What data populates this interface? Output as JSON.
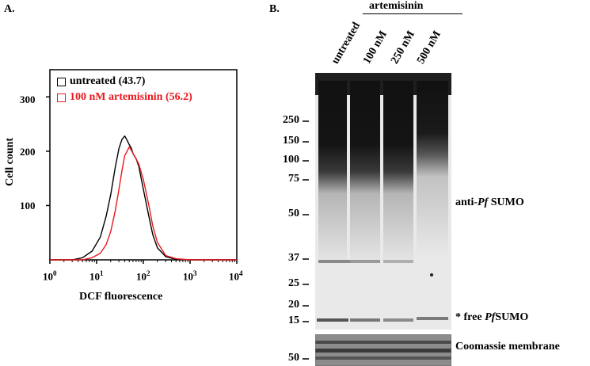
{
  "panel_a": {
    "label": "A.",
    "chart_data": {
      "type": "line",
      "title": "",
      "xlabel": "DCF fluorescence",
      "ylabel": "Cell count",
      "x_scale": "log",
      "xlim": [
        1,
        10000
      ],
      "ylim": [
        0,
        350
      ],
      "x_ticks": [
        1,
        10,
        100,
        1000,
        10000
      ],
      "y_ticks": [
        100,
        200,
        300
      ],
      "series": [
        {
          "name": "untreated (43.7)",
          "color": "#000000",
          "x": [
            1,
            3,
            5,
            8,
            12,
            16,
            20,
            25,
            30,
            35,
            40,
            45,
            50,
            55,
            60,
            70,
            80,
            100,
            130,
            160,
            200,
            300,
            500,
            1000,
            10000
          ],
          "y": [
            0,
            0,
            4,
            16,
            42,
            80,
            120,
            170,
            205,
            222,
            228,
            220,
            212,
            206,
            196,
            186,
            172,
            130,
            82,
            46,
            22,
            6,
            1,
            0,
            0
          ]
        },
        {
          "name": "100 nM artemisinin (56.2)",
          "color": "#e8191e",
          "x": [
            1,
            5,
            8,
            12,
            16,
            20,
            25,
            30,
            35,
            40,
            45,
            50,
            55,
            60,
            65,
            70,
            80,
            100,
            130,
            160,
            200,
            300,
            500,
            1000,
            10000
          ],
          "y": [
            0,
            0,
            4,
            12,
            28,
            52,
            90,
            130,
            165,
            192,
            200,
            208,
            202,
            196,
            190,
            186,
            176,
            148,
            102,
            62,
            32,
            8,
            2,
            0,
            0
          ]
        }
      ]
    },
    "x_tick_labels": [
      {
        "base": "10",
        "exp": "0"
      },
      {
        "base": "10",
        "exp": "1"
      },
      {
        "base": "10",
        "exp": "2"
      },
      {
        "base": "10",
        "exp": "3"
      },
      {
        "base": "10",
        "exp": "4"
      }
    ],
    "y_tick_labels": [
      "100",
      "200",
      "300"
    ],
    "legend": [
      {
        "text": "untreated (43.7)",
        "color": "#000000"
      },
      {
        "text": "100 nM artemisinin (56.2)",
        "color": "#e8191e"
      }
    ]
  },
  "panel_b": {
    "label": "B.",
    "treatment_header": "artemisinin",
    "lanes": [
      "untreated",
      "100 nM",
      "250 nM",
      "500 nM"
    ],
    "mw_markers": [
      "250",
      "150",
      "100",
      "75",
      "50",
      "37",
      "25",
      "20",
      "15"
    ],
    "coomassie_marker": "50",
    "annotations": {
      "sumo": {
        "prefix": "anti-",
        "italic": "Pf",
        "suffix": " SUMO"
      },
      "free": {
        "prefix": "* free ",
        "italic": "Pf",
        "suffix": "SUMO"
      },
      "coomassie": "Coomassie membrane"
    }
  }
}
